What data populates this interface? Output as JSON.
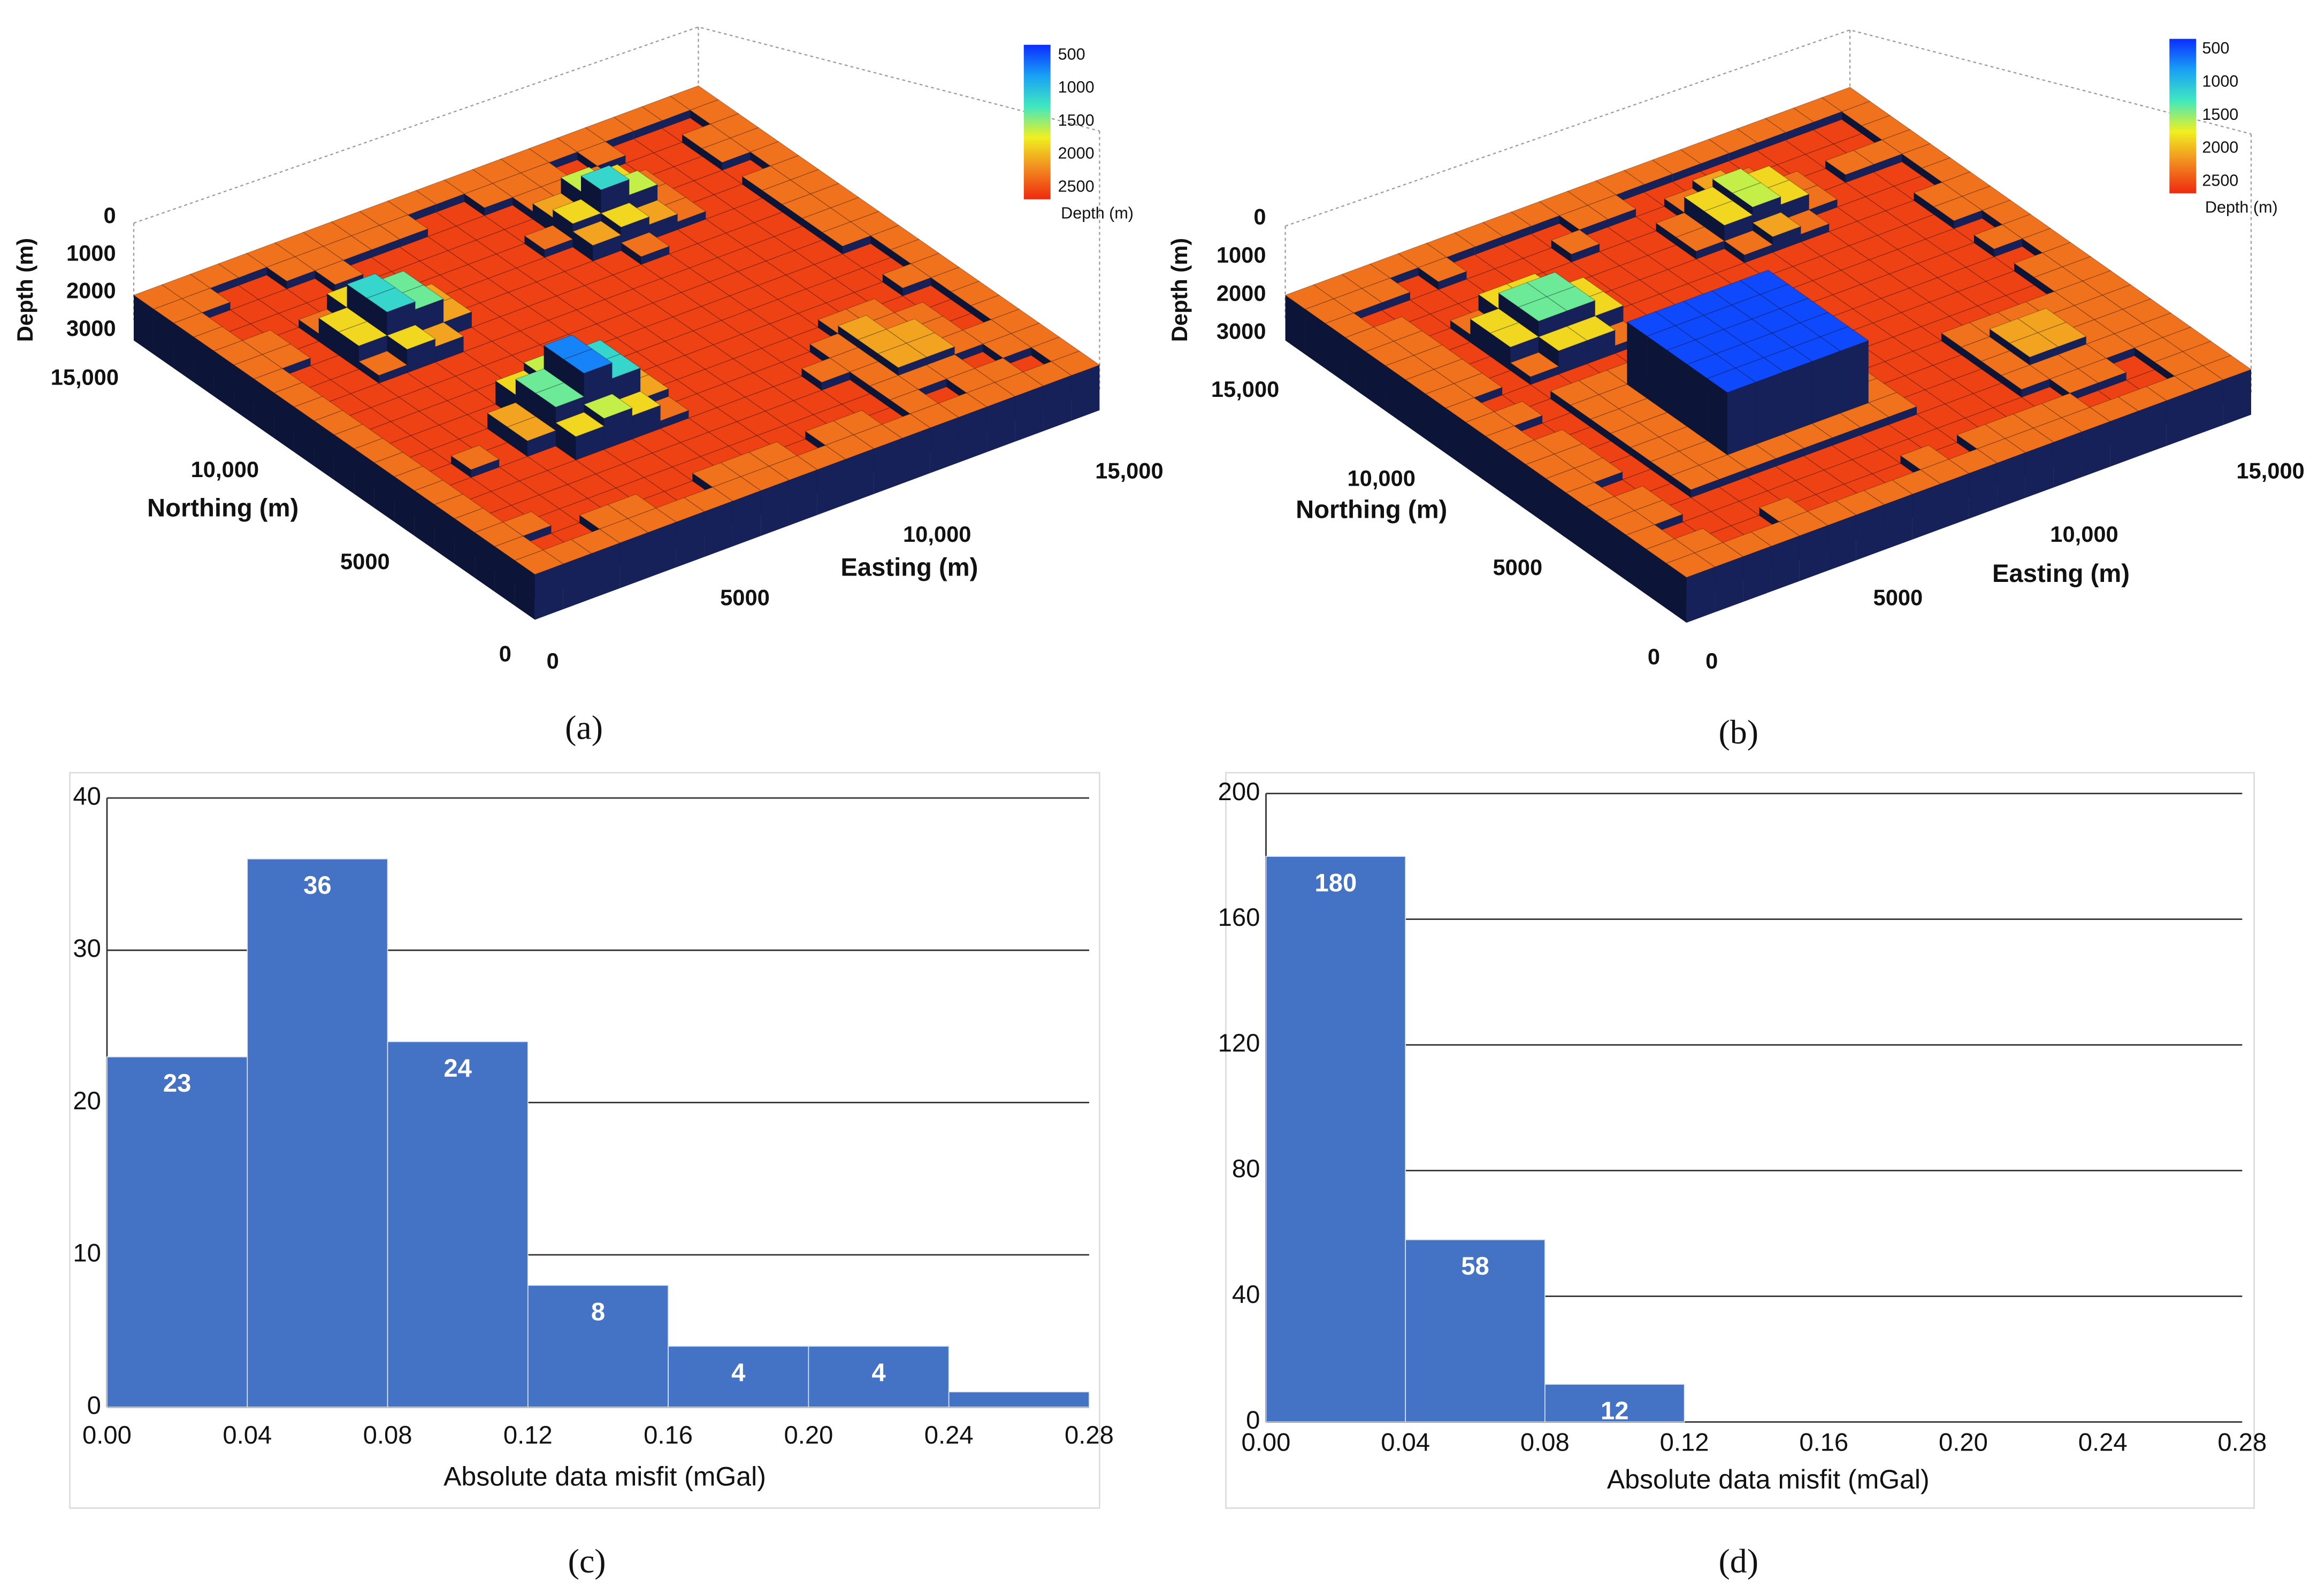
{
  "chart_data": [
    {
      "type": "3d-block",
      "caption": "(a)",
      "zlabel": "Depth (m)",
      "zticks": [
        0,
        1000,
        2000,
        3000
      ],
      "ylabel": "Northing (m)",
      "yticks": [
        0,
        5000,
        {
          "value": 10000,
          "label": "10,000"
        },
        {
          "value": 15000,
          "label": "15,000"
        }
      ],
      "xlabel": "Easting (m)",
      "xticks": [
        0,
        5000,
        {
          "value": 10000,
          "label": "10,000"
        },
        {
          "value": 15000,
          "label": "15,000"
        }
      ],
      "colorbar": {
        "label": "Depth (m)",
        "ticks": [
          500,
          1000,
          1500,
          2000,
          2500
        ],
        "colors": [
          "#0b2cff",
          "#19a0f5",
          "#40e8c0",
          "#f0f020",
          "#f28a20",
          "#ee2a10"
        ]
      }
    },
    {
      "type": "3d-block",
      "caption": "(b)",
      "zlabel": "Depth (m)",
      "zticks": [
        0,
        1000,
        2000,
        3000
      ],
      "ylabel": "Northing (m)",
      "yticks": [
        0,
        5000,
        {
          "value": 10000,
          "label": "10,000"
        },
        {
          "value": 15000,
          "label": "15,000"
        }
      ],
      "xlabel": "Easting (m)",
      "xticks": [
        0,
        5000,
        {
          "value": 10000,
          "label": "10,000"
        },
        {
          "value": 15000,
          "label": "15,000"
        }
      ],
      "colorbar": {
        "label": "Depth (m)",
        "ticks": [
          500,
          1000,
          1500,
          2000,
          2500
        ],
        "colors": [
          "#0b2cff",
          "#19a0f5",
          "#40e8c0",
          "#f0f020",
          "#f28a20",
          "#ee2a10"
        ]
      }
    },
    {
      "type": "histogram",
      "caption": "(c)",
      "xlabel": "Absolute data misfit (mGal)",
      "color": "#4472c4",
      "bins": [
        0,
        0.04,
        0.08,
        0.12,
        0.16,
        0.2,
        0.24,
        0.28
      ],
      "values": [
        23,
        36,
        24,
        8,
        4,
        4,
        1
      ],
      "value_labels": [
        "23",
        "36",
        "24",
        "8",
        "4",
        "4",
        null
      ],
      "xlim": [
        0,
        0.28
      ],
      "xticks": [
        {
          "value": 0,
          "label": "0.00"
        },
        {
          "value": 0.04,
          "label": "0.04"
        },
        {
          "value": 0.08,
          "label": "0.08"
        },
        {
          "value": 0.12,
          "label": "0.12"
        },
        {
          "value": 0.16,
          "label": "0.16"
        },
        {
          "value": 0.2,
          "label": "0.20"
        },
        {
          "value": 0.24,
          "label": "0.24"
        },
        {
          "value": 0.28,
          "label": "0.28"
        }
      ],
      "ylim": [
        0,
        40
      ],
      "yticks": [
        0,
        10,
        20,
        30,
        40
      ],
      "grid": true
    },
    {
      "type": "histogram",
      "caption": "(d)",
      "xlabel": "Absolute data misfit (mGal)",
      "color": "#4472c4",
      "bins": [
        0,
        0.04,
        0.08,
        0.12,
        0.16,
        0.2,
        0.24,
        0.28
      ],
      "values": [
        180,
        58,
        12,
        0,
        0,
        0,
        0
      ],
      "value_labels": [
        "180",
        "58",
        "12",
        null,
        null,
        null,
        null
      ],
      "xlim": [
        0,
        0.28
      ],
      "xticks": [
        {
          "value": 0,
          "label": "0.00"
        },
        {
          "value": 0.04,
          "label": "0.04"
        },
        {
          "value": 0.08,
          "label": "0.08"
        },
        {
          "value": 0.12,
          "label": "0.12"
        },
        {
          "value": 0.16,
          "label": "0.16"
        },
        {
          "value": 0.2,
          "label": "0.20"
        },
        {
          "value": 0.24,
          "label": "0.24"
        },
        {
          "value": 0.28,
          "label": "0.28"
        }
      ],
      "ylim": [
        0,
        200
      ],
      "yticks": [
        0,
        40,
        80,
        120,
        160,
        200
      ],
      "grid": true
    }
  ]
}
